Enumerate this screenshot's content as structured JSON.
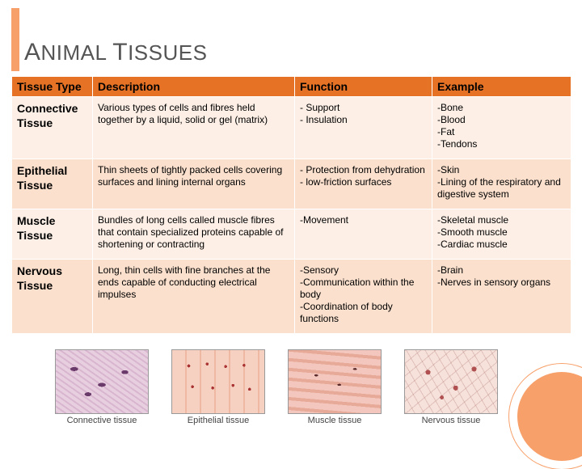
{
  "title_html": "<span class='cap'>A</span>NIMAL <span class='cap'>T</span>ISSUES",
  "headers": [
    "Tissue Type",
    "Description",
    "Function",
    "Example"
  ],
  "rows": [
    {
      "type": "Connective Tissue",
      "desc": "Various types of cells and fibres held together by a liquid, solid or gel (matrix)",
      "func": "- Support\n- Insulation",
      "example": "-Bone\n-Blood\n-Fat\n-Tendons"
    },
    {
      "type": "Epithelial Tissue",
      "desc": "Thin sheets of tightly packed cells covering surfaces and lining internal organs",
      "func": "- Protection from dehydration\n- low-friction surfaces",
      "example": "-Skin\n-Lining of the respiratory and digestive system"
    },
    {
      "type": "Muscle Tissue",
      "desc": "Bundles of  long cells called muscle fibres that contain specialized proteins capable of shortening or contracting",
      "func": "-Movement",
      "example": "-Skeletal muscle\n-Smooth muscle\n-Cardiac muscle"
    },
    {
      "type": "Nervous Tissue",
      "desc": "Long, thin cells with fine branches at the ends capable of conducting electrical impulses",
      "func": "-Sensory\n-Communication within the body\n-Coordination of body functions",
      "example": "-Brain\n-Nerves in sensory organs"
    }
  ],
  "thumbs": [
    {
      "label": "Connective tissue",
      "img_class": "img-connective"
    },
    {
      "label": "Epithelial tissue",
      "img_class": "img-epithelial"
    },
    {
      "label": "Muscle tissue",
      "img_class": "img-muscle"
    },
    {
      "label": "Nervous tissue",
      "img_class": "img-nervous"
    }
  ],
  "colors": {
    "accent": "#f7a06a",
    "header_bg": "#e67225",
    "row_light": "#fdefe6",
    "row_dark": "#fbe0cd"
  }
}
